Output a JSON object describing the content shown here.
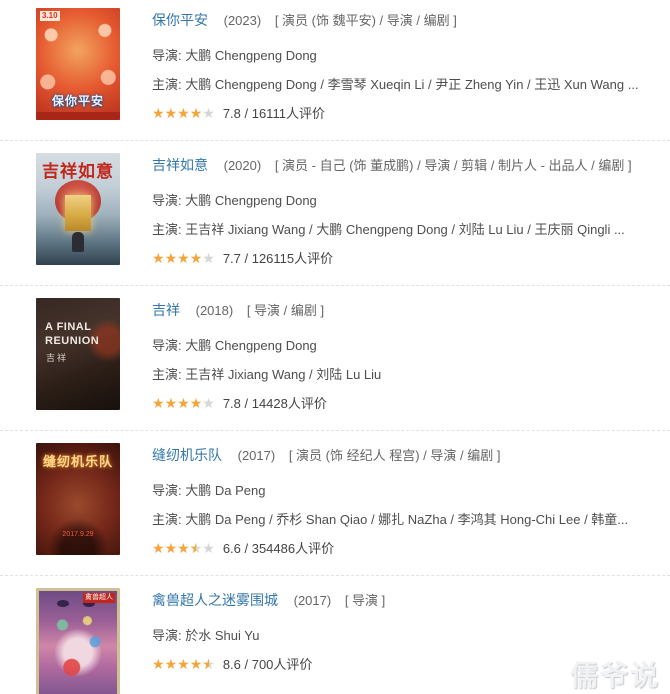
{
  "watermark": "儒爷说",
  "labels": {
    "director": "导演:",
    "cast": "主演:"
  },
  "icons": {
    "star": "★"
  },
  "colors": {
    "link_blue": "#3377aa",
    "star_orange": "#f5a43a",
    "star_empty": "#d6d6d6",
    "meta_text": "#4e4e4e",
    "divider": "#e2e2e2"
  },
  "movies": [
    {
      "title": "保你平安",
      "year": "(2023)",
      "roles": "[ 演员 (饰 魏平安) / 导演 / 编剧 ]",
      "director": "大鹏 Chengpeng Dong",
      "cast": "大鹏 Chengpeng Dong / 李雪琴 Xueqin Li / 尹正 Zheng Yin / 王迅 Xun Wang ...",
      "stars": 4,
      "rating_text": "7.8 / 16111人评价",
      "poster": {
        "date": "3.10",
        "title": "保你平安"
      }
    },
    {
      "title": "吉祥如意",
      "year": "(2020)",
      "roles": "[ 演员 - 自己 (饰 董成鹏) / 导演 / 剪辑 / 制片人 - 出品人 / 编剧 ]",
      "director": "大鹏 Chengpeng Dong",
      "cast": "王吉祥 Jixiang Wang / 大鹏 Chengpeng Dong / 刘陆 Lu Liu / 王庆丽 Qingli ...",
      "stars": 4,
      "rating_text": "7.7 / 126115人评价",
      "poster": {
        "title": "吉祥如意"
      }
    },
    {
      "title": "吉祥",
      "year": "(2018)",
      "roles": "[ 导演 / 编剧 ]",
      "director": "大鹏 Chengpeng Dong",
      "cast": "王吉祥 Jixiang Wang / 刘陆 Lu Liu",
      "stars": 4,
      "rating_text": "7.8 / 14428人评价",
      "poster": {
        "title_en": "A FINAL REUNION",
        "title": "吉祥"
      }
    },
    {
      "title": "缝纫机乐队",
      "year": "(2017)",
      "roles": "[ 演员 (饰 经纪人 程宫) / 导演 / 编剧 ]",
      "director": "大鹏 Da Peng",
      "cast": "大鹏 Da Peng / 乔杉 Shan Qiao / 娜扎 NaZha / 李鸿其 Hong-Chi Lee / 韩童...",
      "stars": 3.5,
      "rating_text": "6.6 / 354486人评价",
      "poster": {
        "title": "缝纫机乐队",
        "date": "2017.9.29"
      }
    },
    {
      "title": "禽兽超人之迷雾围城",
      "year": "(2017)",
      "roles": "[ 导演 ]",
      "director": "於水 Shui Yu",
      "stars": 4.5,
      "rating_text": "8.6 / 700人评价",
      "poster": {
        "title": "禽兽超人"
      }
    }
  ]
}
